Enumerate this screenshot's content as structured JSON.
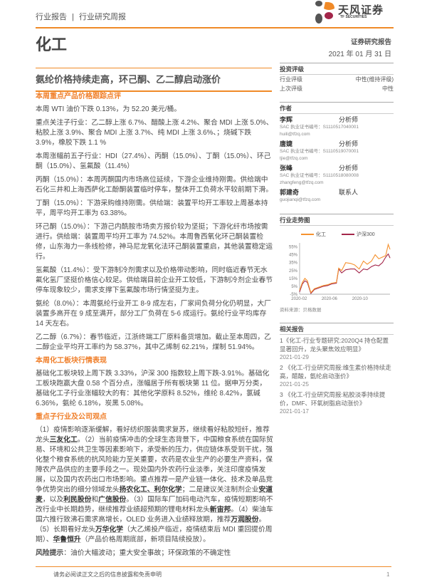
{
  "header": {
    "category": "行业报告",
    "separator": "|",
    "report_type": "行业研究周报",
    "logo_cn": "天风证券",
    "logo_en": "TF SECURITIES"
  },
  "title": "化工",
  "report_kind": "证券研究报告",
  "date": "2021 年 01 月 31 日",
  "subtitle": "氨纶价格持续走高，环己酮、乙二醇启动涨价",
  "rating": {
    "heading": "投资评级",
    "rows": [
      {
        "label": "行业评级",
        "value": "中性(维持评级)"
      },
      {
        "label": "上次评级",
        "value": "中性"
      }
    ]
  },
  "authors": {
    "heading": "作者",
    "list": [
      {
        "name": "李辉",
        "role": "分析师",
        "cert": "SAC 执业证书编号：S1110517040001",
        "email": "huili@tfzq.com"
      },
      {
        "name": "唐婕",
        "role": "分析师",
        "cert": "SAC 执业证书编号：S1110519070001",
        "email": "tjie@tfzq.com"
      },
      {
        "name": "张峰",
        "role": "分析师",
        "cert": "SAC 执业证书编号：S1110518080008",
        "email": "zhangfeng@tfzq.com"
      },
      {
        "name": "郭建奇",
        "role": "联系人",
        "email": "guojianqi@tfzq.com"
      }
    ]
  },
  "trend": {
    "heading": "行业走势图",
    "source": "资料来源：贝格数据"
  },
  "chart_data": {
    "type": "line",
    "x": [
      "2020-02-03",
      "2020-02-14",
      "2020-02-24",
      "2020-03-05",
      "2020-03-19",
      "2020-04-02",
      "2020-04-20",
      "2020-05-08",
      "2020-05-25",
      "2020-06-10",
      "2020-06-29",
      "2020-07-08",
      "2020-07-20",
      "2020-08-05",
      "2020-08-25",
      "2020-09-10",
      "2020-09-28",
      "2020-10-15",
      "2020-10-30",
      "2020-11-16",
      "2020-12-01",
      "2020-12-15",
      "2020-12-30",
      "2021-01-12",
      "2021-01-22",
      "2021-01-29"
    ],
    "series": [
      {
        "name": "化工",
        "color": "#f5922f",
        "values": [
          0,
          10,
          15,
          12,
          -3,
          2,
          4,
          6,
          7,
          9,
          10,
          28,
          25,
          35,
          34,
          32,
          27,
          37,
          33,
          37,
          45,
          40,
          42,
          44,
          58,
          52
        ]
      },
      {
        "name": "沪深300",
        "color": "#a3264a",
        "values": [
          -2,
          8,
          12,
          10,
          -4,
          1,
          3,
          5,
          6,
          8,
          9,
          27,
          22,
          26,
          27,
          27,
          22,
          27,
          26,
          30,
          32,
          31,
          35,
          42,
          46,
          41
        ]
      }
    ],
    "x_ticks": [
      "2020-02",
      "2020-06",
      "2020-10"
    ],
    "y_ticks": [
      "-5%",
      "5%",
      "15%",
      "25%",
      "35%",
      "45%",
      "55%"
    ],
    "ylim": [
      -5,
      60
    ],
    "legend": "top",
    "grid": false
  },
  "related": {
    "heading": "相关报告",
    "items": [
      {
        "text": "1《化工-行业专题研究:2020Q4 持仓配置显著回升，龙头聚焦效应明显》",
        "date": "2021-01-29"
      },
      {
        "text": "2 《化工-行业研究周报:维生素价格持续走高，醋酸，氨纶启动涨价》",
        "date": "2021-01-25"
      },
      {
        "text": "3 《化工-行业研究周报:粘胶淡季持续提价，DMF、环氧树脂启动涨价》",
        "date": "2021-01-17"
      }
    ]
  },
  "sections": {
    "s1_heading": "本周重点产品价格跟踪点评",
    "s1_paras": [
      "本周 WTI 油价下跌 0.13%，为 52.20 美元/桶。",
      "重点关注子行业：乙二醇上涨 6.7%、醋酸上涨 4.2%、聚合 MDI 上涨 5.0%、粘胶上涨 3.9%、聚合 MDI 上涨 3.7%、纯 MDI 上涨 3.6%、；烧碱下跌 3.9%，橡胶下跌 1.1 %",
      "本周涨幅前五子行业：HDI（27.4%）、丙酮（15.0%）、丁酮（15.0%）、环己酮（15.0%）、氢氟酸（11.4%）",
      "丙酮（15.0%）：本周丙酮国内市场高位延续，下游企业维持刚需。供给端中石化三井和上海西萨化工酚酮装置临时停车，整体开工负荷水平较前期下滑。",
      "丁酮（15.0%）：下游采购维持刚需。供给端：装置平均开工率较上周基本持平，周平均开工率为 63.38%。",
      "环己酮（15.0%）：下游己内酰胺市场卖方报价较为坚挺；下游化纤市场按需进行。供给端：装置周平均开工率为 74.52%。本周鲁西氧化环己酮装置检修，山东海力一条线检修，神马尼龙氧化法环己酮装置重启，其他装置稳定运行。",
      "氢氟酸（11.4%）：受下游制冷剂需求以及价格带动影响，同时临近春节无水氟化氢厂坚挺价格信心较足。供给端目前企业开工较低，下游制冷剂企业春节停车现象较少，需求支撑下氢氟酸市场行情坚挺为主。",
      "氨纶（8.0%）：本周氨纶行业开工 8-9 成左右，厂家间负荷分化仍明显，大厂装置多高开在 9 成至满开，部分工厂负荷在 5-6 成运行。氨纶行业平均库存 14 天左右。",
      "乙二醇（6.7%）：春节临近，江浙终端工厂原料备货增加。截止至本周四，乙二醇企业平均开工率约为 58.37%，其中乙烯制 62.21%，煤制 51.94%。"
    ],
    "s2_heading": "本周化工板块行情表现",
    "s2_para": "基础化工板块较上周下跌 3.33%，沪深 300 指数较上周下跌-3.91%。基础化工板块跑赢大盘 0.58 个百分点，涨幅居于所有板块第 11 位。据申万分类，基础化工子行业涨幅较大的有：其他化学原料 8.52%，维纶 8.42%，氯碱 6.36%，氨纶 6.18%，炭黑 5.08%。",
    "s3_heading": "重点子行业及公司观点",
    "s3_segments": [
      {
        "t": "（1）疫情影响逐渐缓解，看好纺织服装需求复苏，继续看好粘胶短纤，推荐龙头"
      },
      {
        "t": "三友化工",
        "b": true
      },
      {
        "t": "。（2）当前疫情冲击的全球生态背景下，中国粮食系统在国际贸易、环境和公共卫生等因素影响下，承受新的压力，供应链体系受到干扰，强化整个粮食系统的抗风险能力至关重要，农药是农业生产的必要生产资料，保障农产品供应的主要手段之一。现处国内外农药行业淡季，关注印度疫情发展，以及国内农药出口市场影响。重点推荐一是产业链一体化、技术及单品竞争优势突出的细分领域龙头"
      },
      {
        "t": "扬农化工、利尔化学",
        "b": true
      },
      {
        "t": "；二是建议关注制剂企业"
      },
      {
        "t": "安道麦",
        "b": true
      },
      {
        "t": "，以及"
      },
      {
        "t": "利民股份",
        "b": true
      },
      {
        "t": "和"
      },
      {
        "t": "广信股份",
        "b": true
      },
      {
        "t": "。（3）国际车厂加码电动汽车，疫情短期影响不改行业中长期趋势，继续推荐业绩超预期的锂电材料龙头"
      },
      {
        "t": "新宙邦",
        "b": true
      },
      {
        "t": "。（4）柴油车国六推行致沸石需求高增长，OLED 业务进入业绩释放期，推荐"
      },
      {
        "t": "万润股份",
        "b": true
      },
      {
        "t": "。（5）长期看好龙头"
      },
      {
        "t": "万华化学",
        "b": true
      },
      {
        "t": "（大乙烯投产临近，疫情结束后 MDI 重回提价周期）、"
      },
      {
        "t": "华鲁恒升",
        "b": true
      },
      {
        "t": "（产品价格周期底部，新项目陆续投放）。"
      }
    ],
    "risk_label": "风险提示",
    "risk_text": "：油价大幅波动；重大安全事故；环保政策的不确定性"
  },
  "footer": {
    "disclaimer": "请务必阅读正文之后的信息披露和免责申明",
    "page": "1"
  }
}
